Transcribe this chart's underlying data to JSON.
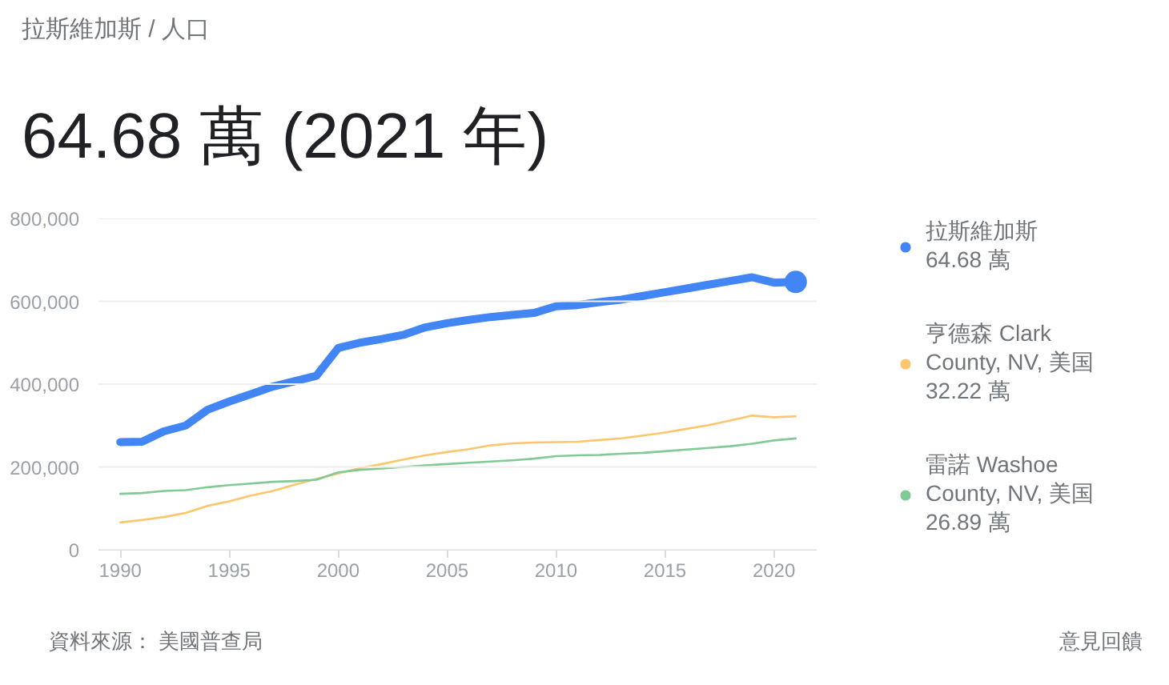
{
  "chart_data": {
    "type": "line",
    "title": "拉斯維加斯 / 人口",
    "subtitle": "64.68 萬 (2021 年)",
    "x": [
      1990,
      1991,
      1992,
      1993,
      1994,
      1995,
      1996,
      1997,
      1998,
      1999,
      2000,
      2001,
      2002,
      2003,
      2004,
      2005,
      2006,
      2007,
      2008,
      2009,
      2010,
      2011,
      2012,
      2013,
      2014,
      2015,
      2016,
      2017,
      2018,
      2019,
      2020,
      2021
    ],
    "series": [
      {
        "name": "拉斯維加斯\n64.68 萬",
        "color": "#4285f4",
        "values": [
          260000,
          261000,
          286000,
          300000,
          338000,
          358000,
          376000,
          394000,
          407000,
          420000,
          487000,
          500000,
          509000,
          519000,
          537000,
          547000,
          555000,
          562000,
          567000,
          572000,
          588000,
          591000,
          598000,
          604000,
          613000,
          622000,
          631000,
          640000,
          649000,
          658000,
          645000,
          646800
        ]
      },
      {
        "name": "亨德森 Clark County, NV, 美国\n32.22 萬",
        "color": "#fcc66d",
        "values": [
          66000,
          72000,
          79000,
          89000,
          106000,
          117000,
          131000,
          142000,
          157000,
          171000,
          184000,
          197000,
          207000,
          218000,
          228000,
          236000,
          243000,
          252000,
          257000,
          259000,
          260000,
          261000,
          265000,
          269000,
          276000,
          283000,
          292000,
          301000,
          312000,
          324000,
          320000,
          322200
        ]
      },
      {
        "name": "雷諾 Washoe County, NV, 美国\n26.89 萬",
        "color": "#81c995",
        "values": [
          135000,
          137000,
          142000,
          144000,
          151000,
          156000,
          160000,
          164000,
          166000,
          169000,
          187000,
          193000,
          196000,
          200000,
          204000,
          207000,
          210000,
          213000,
          216000,
          220000,
          226000,
          228000,
          229000,
          232000,
          234000,
          238000,
          242000,
          246000,
          250000,
          256000,
          264000,
          268900
        ]
      },
      {
        "type": "scatter",
        "color": "#4285f4",
        "marker": "circle",
        "x": [
          2021
        ],
        "values": [
          646800
        ]
      }
    ],
    "xlim": [
      1989,
      2022
    ],
    "xticks": [
      1990,
      1995,
      2000,
      2005,
      2010,
      2015,
      2020
    ],
    "ylim": [
      0,
      800000
    ],
    "yticks": [
      0,
      {
        "value": 200000,
        "label": "200,000"
      },
      {
        "value": 400000,
        "label": "400,000"
      },
      {
        "value": 600000,
        "label": "600,000"
      },
      {
        "value": 800000,
        "label": "800,000"
      }
    ],
    "grid": "y",
    "legend": "right",
    "annotations": [
      "資料來源： 美國普查局",
      "意見回饋"
    ]
  }
}
